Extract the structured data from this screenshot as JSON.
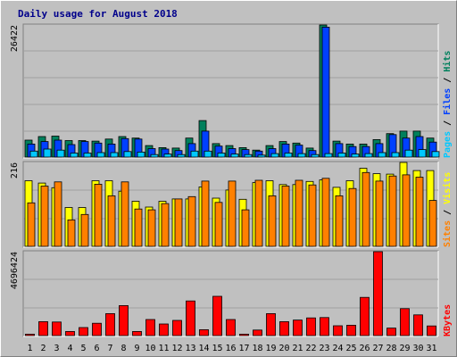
{
  "chart_data": {
    "type": "bar",
    "title": "Daily usage for August 2018",
    "days": [
      "1",
      "2",
      "3",
      "4",
      "5",
      "6",
      "7",
      "8",
      "9",
      "10",
      "11",
      "12",
      "13",
      "14",
      "15",
      "16",
      "17",
      "18",
      "19",
      "20",
      "21",
      "22",
      "23",
      "24",
      "25",
      "26",
      "27",
      "28",
      "29",
      "30",
      "31"
    ],
    "weekend_days": [
      "4",
      "5",
      "11",
      "12",
      "18",
      "19",
      "25",
      "26"
    ],
    "colors": {
      "hits": "#00805c",
      "files": "#0040ff",
      "pages": "#00c8ff",
      "visits": "#ffff00",
      "sites": "#ff8000",
      "kbytes": "#ff0000",
      "weekend_label": "#00805c",
      "weekday_label": "#000000",
      "title": "#00008b",
      "panel_bg": "#c0c0c0"
    },
    "panels": [
      {
        "id": "hits-files-pages",
        "max_label": "26422",
        "ymax": 26422,
        "legend": [
          {
            "key": "pages",
            "label": "Pages"
          },
          {
            "key": "files",
            "label": "Files"
          },
          {
            "key": "hits",
            "label": "Hits"
          }
        ],
        "series": [
          {
            "key": "hits",
            "name": "Hits",
            "values": [
              3400,
              4100,
              4200,
              3300,
              3300,
              3200,
              3600,
              4100,
              3800,
              2300,
              1900,
              1800,
              3800,
              7300,
              2700,
              2300,
              1900,
              1400,
              2300,
              3100,
              2800,
              1800,
              26422,
              3200,
              2600,
              2600,
              3500,
              4700,
              5200,
              5200,
              3800
            ]
          },
          {
            "key": "files",
            "name": "Files",
            "values": [
              2600,
              3100,
              3400,
              2500,
              3100,
              2800,
              2600,
              3700,
              3600,
              1700,
              1600,
              1300,
              2700,
              5200,
              2200,
              1700,
              1500,
              1200,
              1700,
              2600,
              2400,
              1300,
              26000,
              2700,
              2100,
              2100,
              2700,
              4500,
              3800,
              4100,
              3000
            ]
          },
          {
            "key": "pages",
            "name": "Pages",
            "values": [
              1200,
              1600,
              1400,
              800,
              800,
              900,
              900,
              1100,
              1000,
              500,
              600,
              500,
              1200,
              1200,
              800,
              600,
              500,
              400,
              700,
              800,
              700,
              500,
              700,
              800,
              600,
              700,
              900,
              900,
              1400,
              1500,
              1100
            ]
          }
        ]
      },
      {
        "id": "visits-sites",
        "max_label": "216",
        "ymax": 216,
        "legend": [
          {
            "key": "sites",
            "label": "Sites"
          },
          {
            "key": "visits",
            "label": "Visits"
          }
        ],
        "series": [
          {
            "key": "visits",
            "name": "Visits",
            "values": [
              169,
              163,
              151,
              100,
              100,
              169,
              169,
              142,
              116,
              101,
              116,
              122,
              122,
              153,
              124,
              145,
              121,
              164,
              169,
              159,
              159,
              167,
              171,
              152,
              169,
              201,
              187,
              186,
              216,
              195,
              195
            ]
          },
          {
            "key": "sites",
            "name": "Sites",
            "values": [
              112,
              155,
              166,
              68,
              82,
              160,
              130,
              166,
              96,
              94,
              110,
              122,
              128,
              168,
              113,
              168,
              94,
              170,
              130,
              155,
              170,
              158,
              175,
              130,
              149,
              190,
              168,
              181,
              184,
              178,
              118
            ]
          }
        ]
      },
      {
        "id": "kbytes",
        "max_label": "4696424",
        "ymax": 4696424,
        "legend": [
          {
            "key": "kbytes",
            "label": "KBytes"
          }
        ],
        "series": [
          {
            "key": "kbytes",
            "name": "KBytes",
            "values": [
              80000,
              780000,
              760000,
              230000,
              450000,
              690000,
              1230000,
              1680000,
              230000,
              900000,
              650000,
              850000,
              1940000,
              330000,
              2200000,
              900000,
              80000,
              310000,
              1230000,
              780000,
              870000,
              990000,
              1010000,
              550000,
              580000,
              2140000,
              4696424,
              420000,
              1510000,
              1160000,
              540000
            ]
          }
        ]
      }
    ]
  }
}
